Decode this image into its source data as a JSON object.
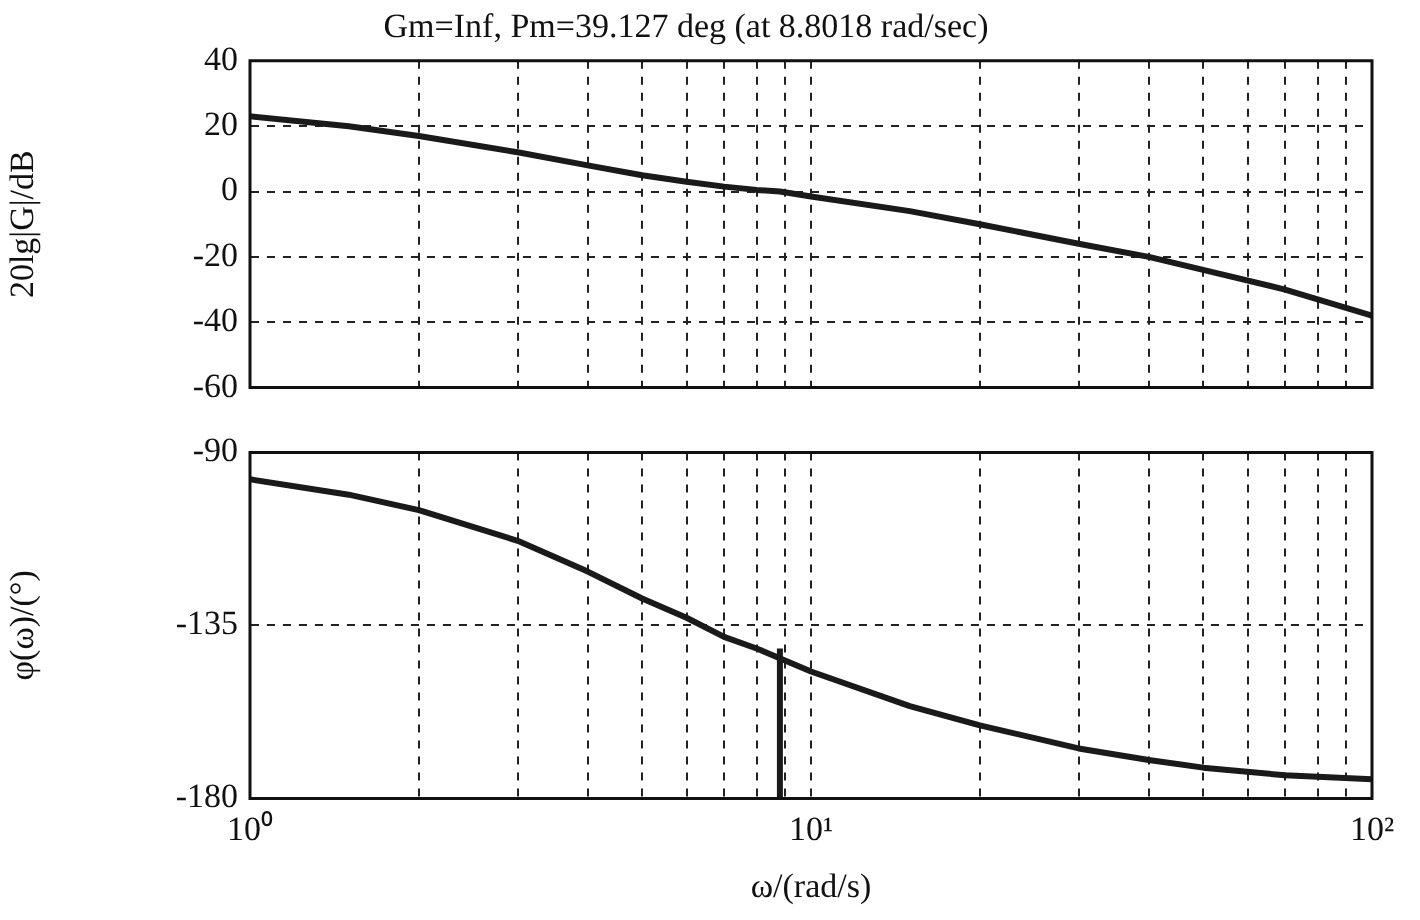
{
  "chart_data": [
    {
      "type": "line",
      "title": "Gm=Inf, Pm=39.127 deg (at 8.8018 rad/sec)",
      "ylabel": "20lg|G|/dB",
      "log": "x",
      "grid": true,
      "tick_labels": "y",
      "xlim": [
        1,
        100
      ],
      "ylim": [
        -60,
        40
      ],
      "xticks": [
        {
          "value": 1,
          "label": null
        },
        {
          "value": 2,
          "label": null
        },
        {
          "value": 3,
          "label": null
        },
        {
          "value": 4,
          "label": null
        },
        {
          "value": 5,
          "label": null
        },
        {
          "value": 6,
          "label": null
        },
        {
          "value": 7,
          "label": null
        },
        {
          "value": 8,
          "label": null
        },
        {
          "value": 9,
          "label": null
        },
        {
          "value": 10,
          "label": null
        },
        {
          "value": 20,
          "label": null
        },
        {
          "value": 30,
          "label": null
        },
        {
          "value": 40,
          "label": null
        },
        {
          "value": 50,
          "label": null
        },
        {
          "value": 60,
          "label": null
        },
        {
          "value": 70,
          "label": null
        },
        {
          "value": 80,
          "label": null
        },
        {
          "value": 90,
          "label": null
        },
        {
          "value": 100,
          "label": null
        }
      ],
      "yticks": [
        -60,
        -40,
        -20,
        0,
        20,
        40
      ],
      "series": [
        {
          "color": "#1a1a1a",
          "x": [
            1,
            1.5,
            2,
            3,
            4,
            5,
            6,
            7,
            8,
            8.8018,
            10,
            15,
            20,
            30,
            40,
            50,
            70,
            100
          ],
          "values": [
            23,
            20,
            17,
            12,
            8,
            5,
            3,
            1.5,
            0.5,
            0,
            -1.5,
            -6,
            -10,
            -16,
            -20,
            -24,
            -30,
            -38
          ]
        }
      ]
    },
    {
      "type": "line",
      "ylabel": "φ(ω)/(°)",
      "xlabel": "ω/(rad/s)",
      "log": "x",
      "grid": true,
      "xlim": [
        1,
        100
      ],
      "ylim": [
        -180,
        -90
      ],
      "xticks": [
        {
          "value": 1,
          "label": "10⁰"
        },
        {
          "value": 2,
          "label": null
        },
        {
          "value": 3,
          "label": null
        },
        {
          "value": 4,
          "label": null
        },
        {
          "value": 5,
          "label": null
        },
        {
          "value": 6,
          "label": null
        },
        {
          "value": 7,
          "label": null
        },
        {
          "value": 8,
          "label": null
        },
        {
          "value": 9,
          "label": null
        },
        {
          "value": 10,
          "label": "10¹"
        },
        {
          "value": 20,
          "label": null
        },
        {
          "value": 30,
          "label": null
        },
        {
          "value": 40,
          "label": null
        },
        {
          "value": 50,
          "label": null
        },
        {
          "value": 60,
          "label": null
        },
        {
          "value": 70,
          "label": null
        },
        {
          "value": 80,
          "label": null
        },
        {
          "value": 90,
          "label": null
        },
        {
          "value": 100,
          "label": "10²"
        }
      ],
      "yticks": [
        -180,
        -135,
        -90
      ],
      "series": [
        {
          "color": "#1a1a1a",
          "x": [
            1,
            1.5,
            2,
            3,
            4,
            5,
            6,
            7,
            8,
            10,
            15,
            20,
            30,
            40,
            50,
            70,
            100
          ],
          "values": [
            -97,
            -101,
            -105,
            -113,
            -121,
            -128,
            -133,
            -138,
            -141,
            -147,
            -156,
            -161,
            -167,
            -170,
            -172,
            -174,
            -175
          ]
        },
        {
          "type": "line",
          "color": "#1a1a1a",
          "x": [
            8.8018,
            8.8018
          ],
          "values": [
            -180,
            -141
          ]
        }
      ]
    }
  ]
}
